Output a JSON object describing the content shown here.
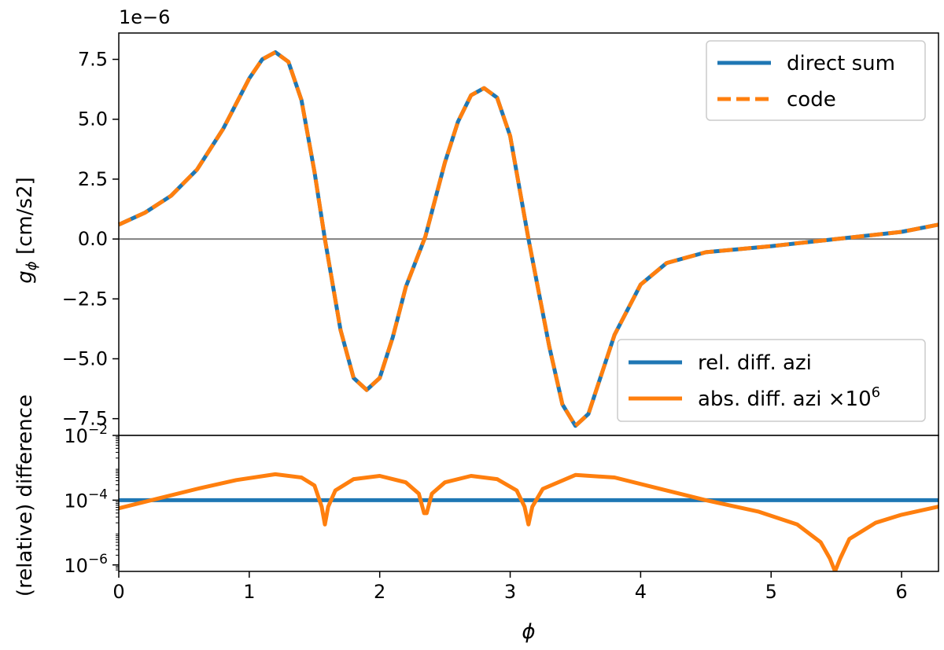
{
  "chart_data": [
    {
      "id": "top",
      "type": "line",
      "ylabel_main": "g",
      "ylabel_sub": "ϕ",
      "ylabel_unit": "[cm/s2]",
      "offset_text": "1e−6",
      "xlim": [
        0,
        6.283
      ],
      "ylim": [
        -8.2,
        8.6
      ],
      "yscale": "linear",
      "yticks": [
        -7.5,
        -5.0,
        -2.5,
        0.0,
        2.5,
        5.0,
        7.5
      ],
      "ytick_labels": [
        "−7.5",
        "−5.0",
        "−2.5",
        "0.0",
        "2.5",
        "5.0",
        "7.5"
      ],
      "zero_line": true,
      "legend_position": "upper right",
      "series": [
        {
          "name": "direct sum",
          "style": "solid",
          "color": "#1f77b4",
          "x": [
            0,
            0.2,
            0.4,
            0.6,
            0.8,
            1.0,
            1.1,
            1.2,
            1.3,
            1.4,
            1.5,
            1.58,
            1.7,
            1.8,
            1.9,
            2.0,
            2.1,
            2.2,
            2.35,
            2.5,
            2.6,
            2.7,
            2.8,
            2.9,
            3.0,
            3.14,
            3.3,
            3.4,
            3.5,
            3.6,
            3.8,
            4.0,
            4.2,
            4.5,
            5.0,
            5.5,
            6.0,
            6.283
          ],
          "y": [
            0.6,
            1.1,
            1.8,
            2.9,
            4.6,
            6.7,
            7.5,
            7.8,
            7.4,
            5.8,
            2.8,
            0.0,
            -3.8,
            -5.8,
            -6.3,
            -5.8,
            -4.1,
            -2.0,
            0.1,
            3.2,
            4.9,
            6.0,
            6.3,
            5.9,
            4.3,
            0.0,
            -4.5,
            -6.9,
            -7.8,
            -7.3,
            -4.0,
            -1.9,
            -1.0,
            -0.55,
            -0.3,
            0.0,
            0.3,
            0.6
          ]
        },
        {
          "name": "code",
          "style": "dashed",
          "color": "#ff7f0e",
          "x": [
            0,
            0.2,
            0.4,
            0.6,
            0.8,
            1.0,
            1.1,
            1.2,
            1.3,
            1.4,
            1.5,
            1.58,
            1.7,
            1.8,
            1.9,
            2.0,
            2.1,
            2.2,
            2.35,
            2.5,
            2.6,
            2.7,
            2.8,
            2.9,
            3.0,
            3.14,
            3.3,
            3.4,
            3.5,
            3.6,
            3.8,
            4.0,
            4.2,
            4.5,
            5.0,
            5.5,
            6.0,
            6.283
          ],
          "y": [
            0.6,
            1.1,
            1.8,
            2.9,
            4.6,
            6.7,
            7.5,
            7.8,
            7.4,
            5.8,
            2.8,
            0.0,
            -3.8,
            -5.8,
            -6.3,
            -5.8,
            -4.1,
            -2.0,
            0.1,
            3.2,
            4.9,
            6.0,
            6.3,
            5.9,
            4.3,
            0.0,
            -4.5,
            -6.9,
            -7.8,
            -7.3,
            -4.0,
            -1.9,
            -1.0,
            -0.55,
            -0.3,
            0.0,
            0.3,
            0.6
          ]
        }
      ],
      "legend": [
        {
          "label": "direct sum",
          "color": "#1f77b4",
          "style": "solid"
        },
        {
          "label": "code",
          "color": "#ff7f0e",
          "style": "dashed"
        }
      ]
    },
    {
      "id": "bottom",
      "type": "line",
      "ylabel": "(relative) difference",
      "xlabel": "ϕ",
      "xlim": [
        0,
        6.283
      ],
      "xticks": [
        0,
        1,
        2,
        3,
        4,
        5,
        6
      ],
      "xtick_labels": [
        "0",
        "1",
        "2",
        "3",
        "4",
        "5",
        "6"
      ],
      "yscale": "log",
      "ylim_exp": [
        -6.2,
        -2.0
      ],
      "yticks_exp": [
        -6,
        -4,
        -2
      ],
      "ytick_base": "10",
      "legend_position": "upper right",
      "series": [
        {
          "name": "rel. diff. azi",
          "color": "#1f77b4",
          "x": [
            0,
            6.283
          ],
          "log10_y": [
            -4.0,
            -4.0
          ]
        },
        {
          "name": "abs. diff. azi ×10",
          "superscript": "6",
          "color": "#ff7f0e",
          "x": [
            0,
            0.3,
            0.6,
            0.9,
            1.2,
            1.4,
            1.5,
            1.555,
            1.58,
            1.605,
            1.66,
            1.8,
            2.0,
            2.2,
            2.3,
            2.34,
            2.36,
            2.4,
            2.5,
            2.7,
            2.9,
            3.05,
            3.11,
            3.14,
            3.17,
            3.25,
            3.5,
            3.8,
            4.1,
            4.5,
            4.9,
            5.2,
            5.38,
            5.45,
            5.49,
            5.53,
            5.6,
            5.8,
            6.0,
            6.283
          ],
          "log10_y": [
            -4.25,
            -3.95,
            -3.65,
            -3.38,
            -3.2,
            -3.3,
            -3.55,
            -4.2,
            -4.75,
            -4.2,
            -3.7,
            -3.35,
            -3.25,
            -3.45,
            -3.8,
            -4.4,
            -4.4,
            -3.8,
            -3.45,
            -3.25,
            -3.35,
            -3.7,
            -4.2,
            -4.75,
            -4.2,
            -3.65,
            -3.22,
            -3.3,
            -3.6,
            -4.0,
            -4.35,
            -4.75,
            -5.3,
            -5.8,
            -6.2,
            -5.8,
            -5.2,
            -4.7,
            -4.45,
            -4.2
          ]
        }
      ],
      "legend": [
        {
          "label": "rel. diff. azi",
          "color": "#1f77b4"
        },
        {
          "label": "abs. diff. azi ×10",
          "superscript": "6",
          "color": "#ff7f0e"
        }
      ]
    }
  ]
}
